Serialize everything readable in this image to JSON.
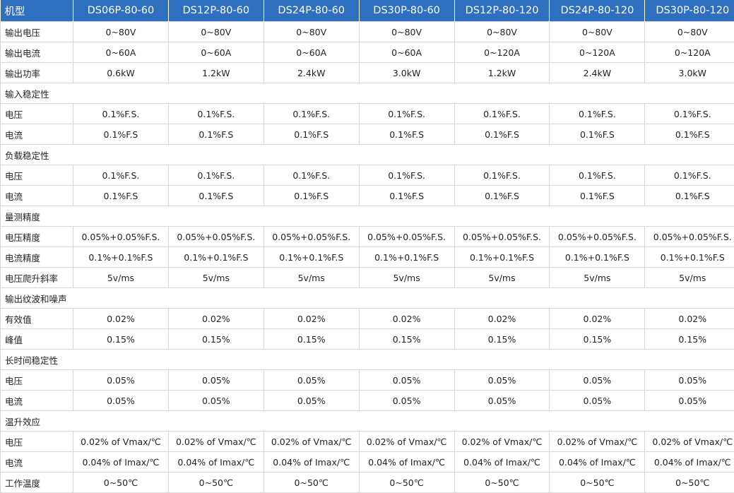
{
  "header": {
    "first": "机型",
    "models": [
      "DS06P-80-60",
      "DS12P-80-60",
      "DS24P-80-60",
      "DS30P-80-60",
      "DS12P-80-120",
      "DS24P-80-120",
      "DS30P-80-120"
    ]
  },
  "rows": [
    {
      "label": "输出电压",
      "values": [
        "0~80V",
        "0~80V",
        "0~80V",
        "0~80V",
        "0~80V",
        "0~80V",
        "0~80V"
      ]
    },
    {
      "label": "输出电流",
      "values": [
        "0~60A",
        "0~60A",
        "0~60A",
        "0~60A",
        "0~120A",
        "0~120A",
        "0~120A"
      ]
    },
    {
      "label": "输出功率",
      "values": [
        "0.6kW",
        "1.2kW",
        "2.4kW",
        "3.0kW",
        "1.2kW",
        "2.4kW",
        "3.0kW"
      ]
    },
    {
      "section": "输入稳定性"
    },
    {
      "label": "电压",
      "values": [
        "0.1%F.S.",
        "0.1%F.S.",
        "0.1%F.S.",
        "0.1%F.S.",
        "0.1%F.S.",
        "0.1%F.S.",
        "0.1%F.S."
      ]
    },
    {
      "label": "电流",
      "values": [
        "0.1%F.S",
        "0.1%F.S",
        "0.1%F.S",
        "0.1%F.S",
        "0.1%F.S",
        "0.1%F.S",
        "0.1%F.S"
      ]
    },
    {
      "section": "负载稳定性"
    },
    {
      "label": "电压",
      "values": [
        "0.1%F.S.",
        "0.1%F.S.",
        "0.1%F.S.",
        "0.1%F.S.",
        "0.1%F.S.",
        "0.1%F.S.",
        "0.1%F.S."
      ]
    },
    {
      "label": "电流",
      "values": [
        "0.1%F.S",
        "0.1%F.S",
        "0.1%F.S",
        "0.1%F.S",
        "0.1%F.S",
        "0.1%F.S",
        "0.1%F.S"
      ]
    },
    {
      "section": "量测精度"
    },
    {
      "label": "电压精度",
      "values": [
        "0.05%+0.05%F.S.",
        "0.05%+0.05%F.S.",
        "0.05%+0.05%F.S.",
        "0.05%+0.05%F.S.",
        "0.05%+0.05%F.S.",
        "0.05%+0.05%F.S.",
        "0.05%+0.05%F.S."
      ]
    },
    {
      "label": "电流精度",
      "values": [
        "0.1%+0.1%F.S",
        "0.1%+0.1%F.S",
        "0.1%+0.1%F.S",
        "0.1%+0.1%F.S",
        "0.1%+0.1%F.S",
        "0.1%+0.1%F.S",
        "0.1%+0.1%F.S"
      ]
    },
    {
      "label": "电压爬升斜率",
      "values": [
        "5v/ms",
        "5v/ms",
        "5v/ms",
        "5v/ms",
        "5v/ms",
        "5v/ms",
        "5v/ms"
      ]
    },
    {
      "section": "输出纹波和噪声"
    },
    {
      "label": "有效值",
      "values": [
        "0.02%",
        "0.02%",
        "0.02%",
        "0.02%",
        "0.02%",
        "0.02%",
        "0.02%"
      ]
    },
    {
      "label": "峰值",
      "values": [
        "0.15%",
        "0.15%",
        "0.15%",
        "0.15%",
        "0.15%",
        "0.15%",
        "0.15%"
      ]
    },
    {
      "section": "长时间稳定性"
    },
    {
      "label": "电压",
      "values": [
        "0.05%",
        "0.05%",
        "0.05%",
        "0.05%",
        "0.05%",
        "0.05%",
        "0.05%"
      ]
    },
    {
      "label": "电流",
      "values": [
        "0.05%",
        "0.05%",
        "0.05%",
        "0.05%",
        "0.05%",
        "0.05%",
        "0.05%"
      ]
    },
    {
      "section": "温升效应"
    },
    {
      "label": "电压",
      "values": [
        "0.02% of Vmax/℃",
        "0.02% of Vmax/℃",
        "0.02% of Vmax/℃",
        "0.02% of Vmax/℃",
        "0.02% of Vmax/℃",
        "0.02% of Vmax/℃",
        "0.02% of Vmax/℃"
      ]
    },
    {
      "label": "电流",
      "values": [
        "0.04% of Imax/℃",
        "0.04% of Imax/℃",
        "0.04% of Imax/℃",
        "0.04% of Imax/℃",
        "0.04% of Imax/℃",
        "0.04% of Imax/℃",
        "0.04% of Imax/℃"
      ]
    },
    {
      "label": "工作温度",
      "values": [
        "0~50℃",
        "0~50℃",
        "0~50℃",
        "0~50℃",
        "0~50℃",
        "0~50℃",
        "0~50℃"
      ]
    }
  ],
  "colors": {
    "header_bg": "#2e6fbf",
    "header_text": "#ffffff",
    "border": "#d6d6d6",
    "text": "#222222"
  }
}
